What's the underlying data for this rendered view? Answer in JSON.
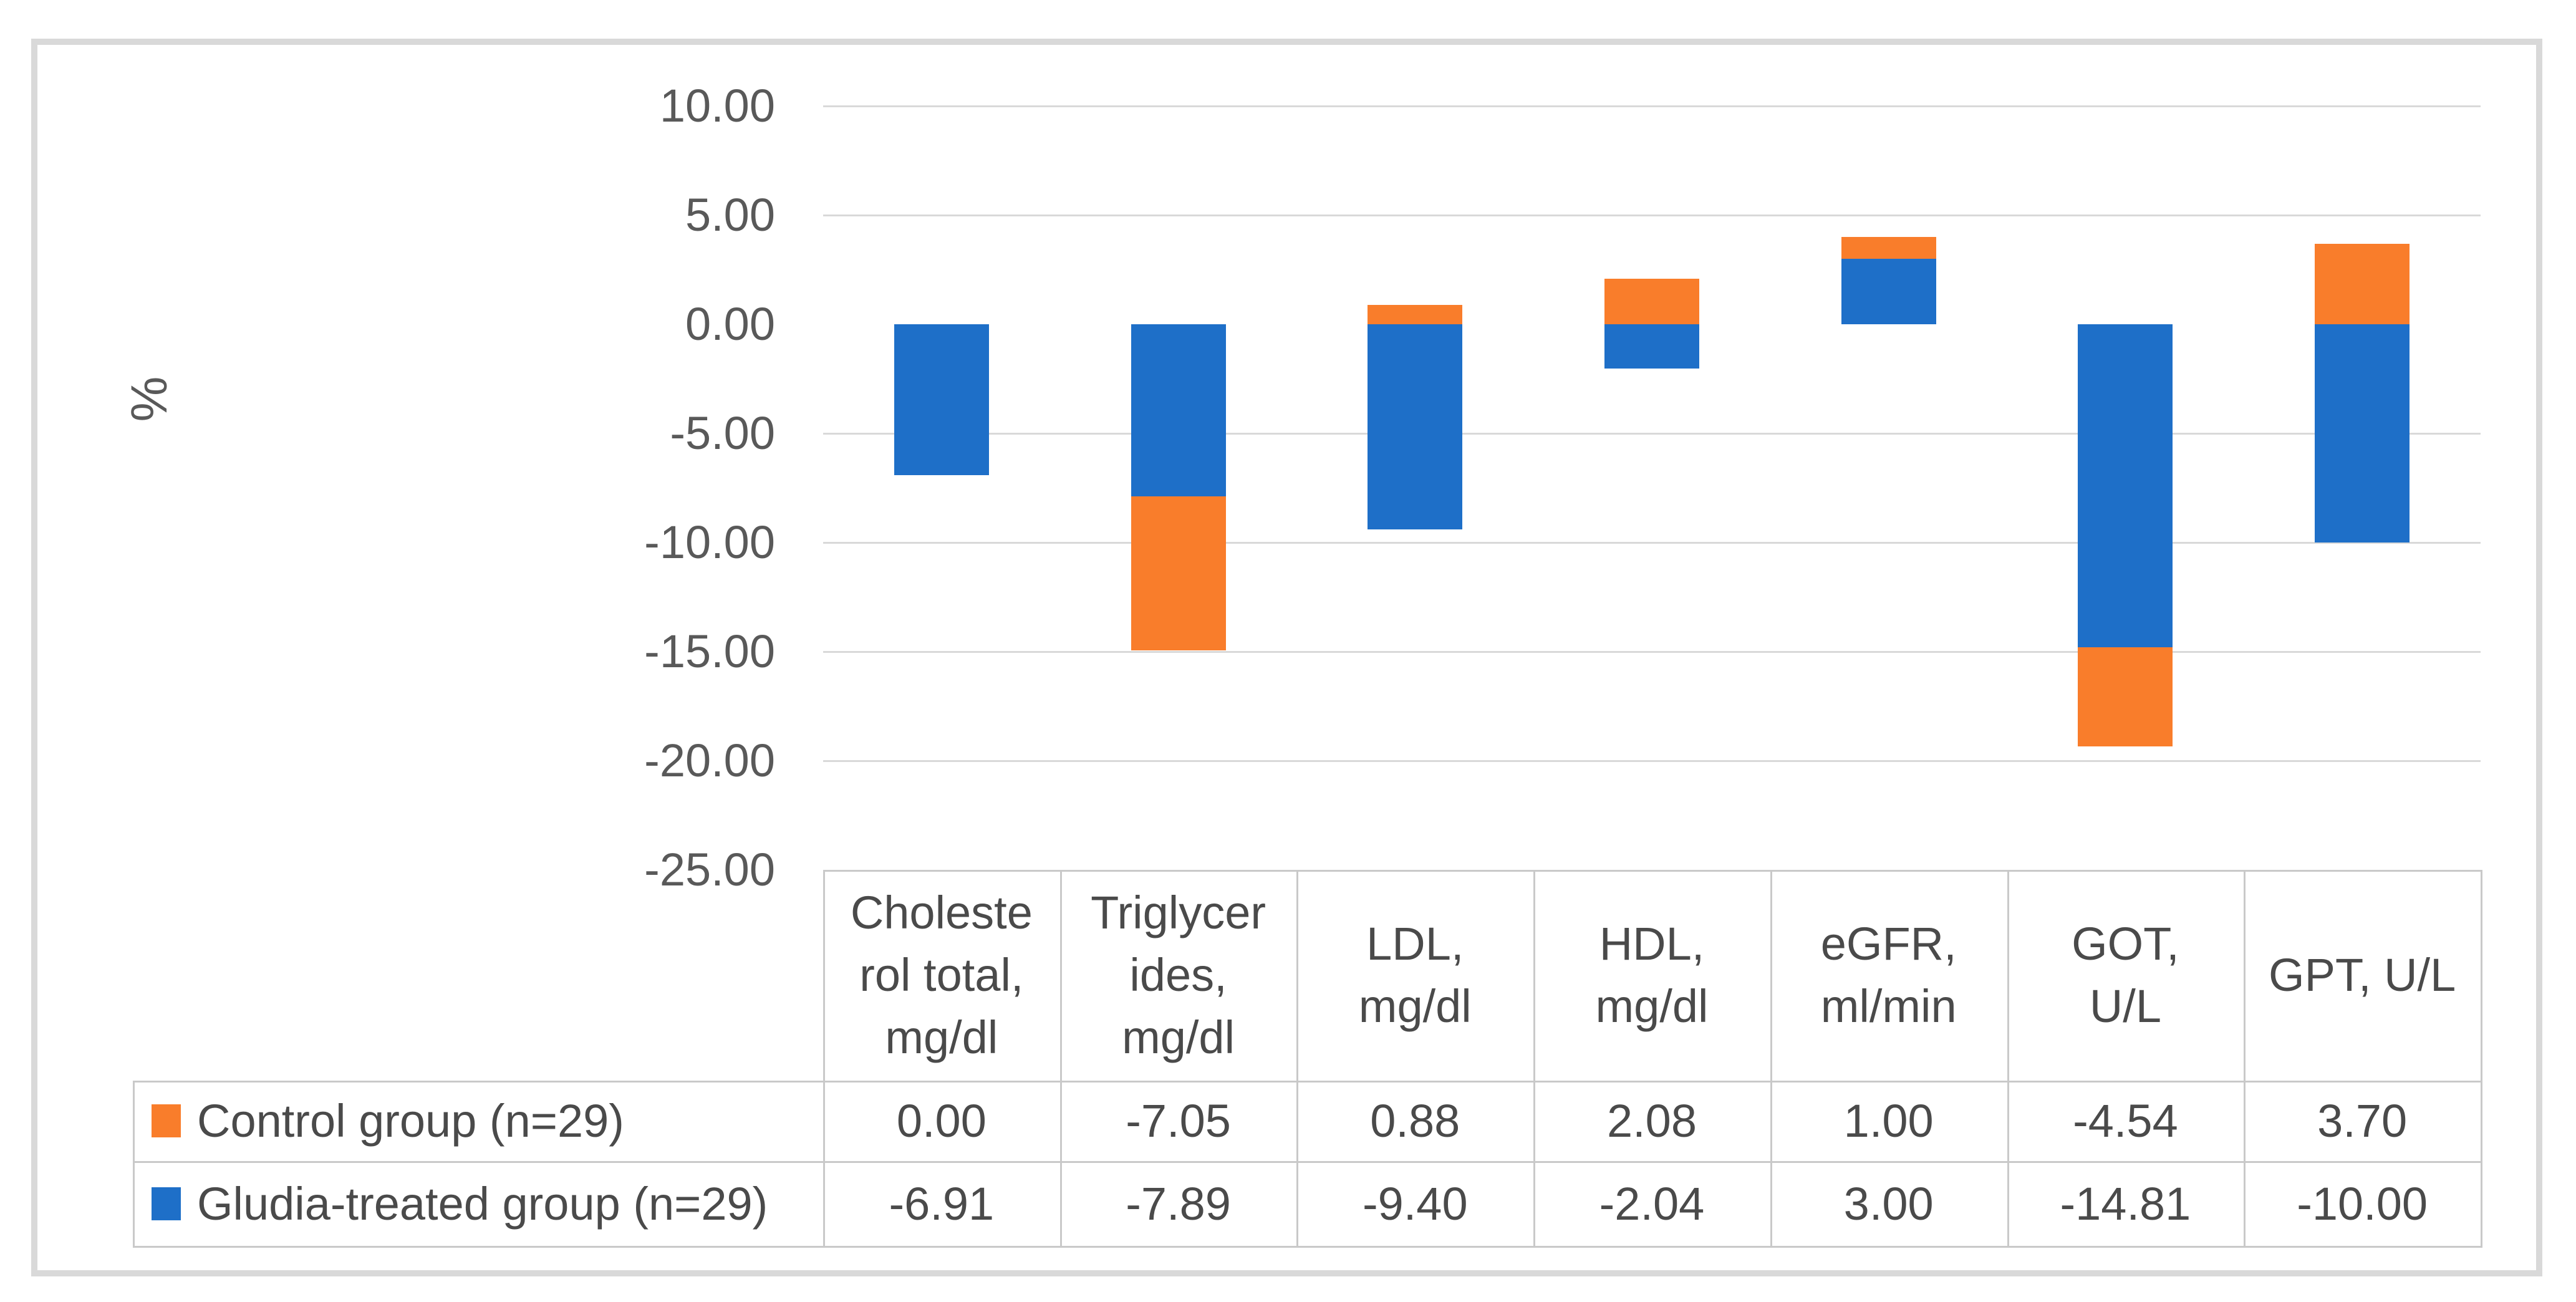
{
  "chart_data": {
    "type": "bar",
    "stacking": "stacked",
    "title": "",
    "ylabel": "%",
    "xlabel": "",
    "ylim": [
      -25,
      10
    ],
    "ytick_step": 5,
    "grid": true,
    "legend_position": "data-table-left",
    "ytick_labels": [
      "10.00",
      "5.00",
      "0.00",
      "-5.00",
      "-10.00",
      "-15.00",
      "-20.00",
      "-25.00"
    ],
    "ytick_values": [
      10,
      5,
      0,
      -5,
      -10,
      -15,
      -20,
      -25
    ],
    "gridline_values": [
      10,
      5,
      -5,
      -10,
      -15,
      -20
    ],
    "categories": [
      "Cholesterol total, mg/dl",
      "Triglycerides, mg/dl",
      "LDL, mg/dl",
      "HDL, mg/dl",
      "eGFR, ml/min",
      "GOT, U/L",
      "GPT, U/L"
    ],
    "category_ids": [
      "cholesterol-total",
      "triglycerides",
      "ldl",
      "hdl",
      "egfr",
      "got",
      "gpt"
    ],
    "category_display": [
      "Choleste\nrol total,\nmg/dl",
      "Triglycer\nides,\nmg/dl",
      "LDL,\nmg/dl",
      "HDL,\nmg/dl",
      "eGFR,\nml/min",
      "GOT,\nU/L",
      "GPT, U/L"
    ],
    "series": [
      {
        "name": "Control group (n=29)",
        "id": "control-group",
        "color": "#f97d2b",
        "plot_order": 2,
        "values": [
          0.0,
          -7.05,
          0.88,
          2.08,
          1.0,
          -4.54,
          3.7
        ],
        "display": [
          "0.00",
          "-7.05",
          "0.88",
          "2.08",
          "1.00",
          "-4.54",
          "3.70"
        ]
      },
      {
        "name": "Gludia-treated group (n=29)",
        "id": "gludia-treated-group",
        "color": "#1e6fc8",
        "plot_order": 1,
        "values": [
          -6.91,
          -7.89,
          -9.4,
          -2.04,
          3.0,
          -14.81,
          -10.0
        ],
        "display": [
          "-6.91",
          "-7.89",
          "-9.40",
          "-2.04",
          "3.00",
          "-14.81",
          "-10.00"
        ]
      }
    ]
  },
  "colors": {
    "background": "#ffffff",
    "figure_border": "#d9d9d9",
    "gridline": "#d9d9d9",
    "table_border": "#c9c9c9",
    "axis_text": "#595959",
    "table_text": "#4a4a4a"
  }
}
